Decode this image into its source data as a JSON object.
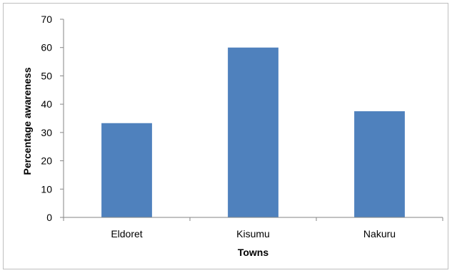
{
  "chart_data": {
    "type": "bar",
    "title": "",
    "categories": [
      "Eldoret",
      "Kisumu",
      "Nakuru"
    ],
    "values": [
      33.3,
      60,
      37.5
    ],
    "xlabel": "Towns",
    "ylabel": "Percentage awareness",
    "ylim": [
      0,
      70
    ],
    "yticks": [
      0,
      10,
      20,
      30,
      40,
      50,
      60,
      70
    ],
    "grid": false,
    "legend": "none",
    "bar_color": "#4F81BD",
    "axis_color": "#868686"
  }
}
